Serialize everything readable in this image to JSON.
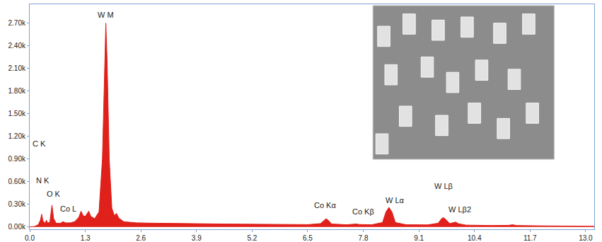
{
  "chart_data": {
    "type": "area",
    "color": "#e0201b",
    "grid": false,
    "x": [
      0.0,
      0.1,
      0.2,
      0.25,
      0.28,
      0.31,
      0.36,
      0.39,
      0.42,
      0.47,
      0.52,
      0.56,
      0.62,
      0.72,
      0.78,
      0.84,
      0.95,
      1.05,
      1.15,
      1.2,
      1.25,
      1.3,
      1.38,
      1.43,
      1.52,
      1.62,
      1.7,
      1.75,
      1.78,
      1.81,
      1.86,
      1.92,
      1.98,
      2.03,
      2.08,
      2.2,
      2.5,
      3.0,
      3.5,
      4.0,
      4.5,
      5.0,
      5.5,
      6.0,
      6.5,
      6.8,
      6.88,
      6.93,
      6.98,
      7.06,
      7.4,
      7.6,
      7.65,
      7.7,
      8.0,
      8.25,
      8.33,
      8.4,
      8.47,
      8.55,
      8.8,
      9.3,
      9.55,
      9.63,
      9.67,
      9.72,
      9.82,
      9.92,
      9.96,
      10.02,
      10.2,
      10.8,
      11.2,
      11.29,
      11.38,
      12.0,
      12.5,
      13.2
    ],
    "values": [
      0,
      5,
      30,
      90,
      170,
      80,
      50,
      90,
      55,
      60,
      290,
      110,
      50,
      50,
      70,
      55,
      55,
      70,
      130,
      210,
      150,
      140,
      210,
      140,
      110,
      200,
      900,
      2200,
      2700,
      2200,
      900,
      250,
      150,
      180,
      120,
      70,
      55,
      50,
      45,
      42,
      40,
      38,
      35,
      33,
      32,
      45,
      90,
      110,
      90,
      40,
      30,
      35,
      40,
      33,
      30,
      60,
      200,
      260,
      200,
      60,
      30,
      28,
      50,
      110,
      125,
      105,
      45,
      60,
      65,
      45,
      25,
      20,
      22,
      30,
      20,
      15,
      12,
      10
    ],
    "xlim": [
      0,
      13.2
    ],
    "xticks": [
      {
        "value": 0,
        "label": "0.0"
      },
      1.3,
      2.6,
      3.9,
      5.2,
      6.5,
      7.8,
      9.1,
      10.4,
      11.7,
      {
        "value": 13,
        "label": "13.0"
      }
    ],
    "ylim": [
      -30,
      2950
    ],
    "yticks": [
      {
        "value": 0,
        "label": "0.00k"
      },
      {
        "value": 300,
        "label": "0.30k"
      },
      {
        "value": 600,
        "label": "0.60k"
      },
      {
        "value": 900,
        "label": "0.90k"
      },
      {
        "value": 1200,
        "label": "1.20k"
      },
      {
        "value": 1500,
        "label": "1.50k"
      },
      {
        "value": 1800,
        "label": "1.80k"
      },
      {
        "value": 2100,
        "label": "2.10k"
      },
      {
        "value": 2400,
        "label": "2.40k"
      },
      {
        "value": 2700,
        "label": "2.70k"
      }
    ],
    "annotations": [
      {
        "text": "W M",
        "x": 1.78,
        "y": 2730
      },
      {
        "text": "C K",
        "x": 0.22,
        "y": 1030
      },
      {
        "text": "N K",
        "x": 0.3,
        "y": 540
      },
      {
        "text": "O K",
        "x": 0.56,
        "y": 360
      },
      {
        "text": "Co L",
        "x": 0.9,
        "y": 170
      },
      {
        "text": "Co Kα",
        "x": 6.9,
        "y": 210
      },
      {
        "text": "Co Kβ",
        "x": 7.8,
        "y": 130
      },
      {
        "text": "W Lα",
        "x": 8.55,
        "y": 280
      },
      {
        "text": "W Lβ",
        "x": 9.67,
        "y": 470
      },
      {
        "text": "W Lβ2",
        "x": 10.05,
        "y": 160
      }
    ]
  }
}
